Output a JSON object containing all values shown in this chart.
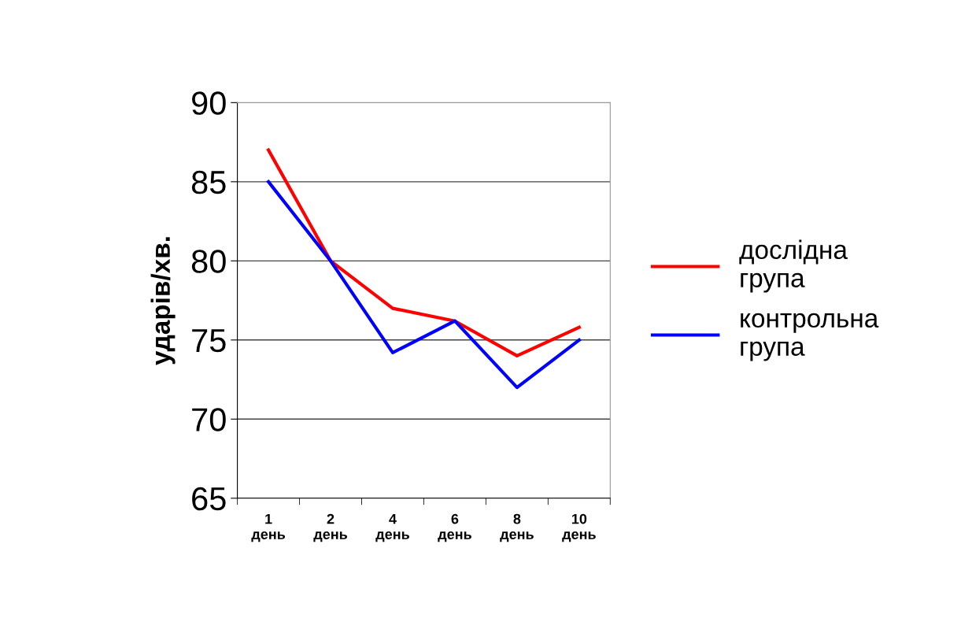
{
  "chart_data": {
    "type": "line",
    "ylabel": "ударів/хв.",
    "categories": [
      "1\nдень",
      "2\nдень",
      "4\nдень",
      "6\nдень",
      "8\nдень",
      "10\nдень"
    ],
    "series": [
      {
        "name": "дослідна\nгрупа",
        "color": "#ff0000",
        "values": [
          87,
          80,
          77,
          76.2,
          74,
          75.8
        ]
      },
      {
        "name": "контрольна\nгрупа",
        "color": "#0000ff",
        "values": [
          85,
          80,
          74.2,
          76.2,
          72,
          75
        ]
      }
    ],
    "ylim": [
      65,
      90
    ],
    "yticks": [
      65,
      70,
      75,
      80,
      85,
      90
    ],
    "grid": "y",
    "legend": "right",
    "marker": "none",
    "line_style": "solid"
  }
}
